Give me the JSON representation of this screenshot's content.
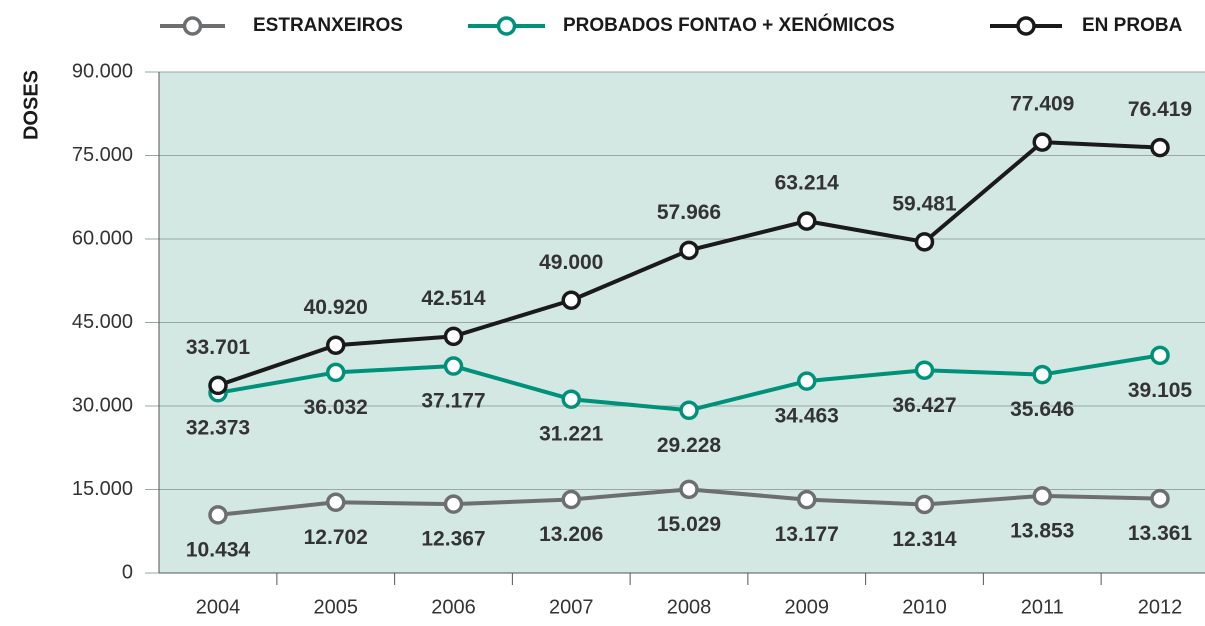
{
  "chart_data": {
    "type": "line",
    "y_label": "DOSES",
    "categories": [
      "2004",
      "2005",
      "2006",
      "2007",
      "2008",
      "2009",
      "2010",
      "2011",
      "2012"
    ],
    "series": [
      {
        "name": "ESTRANXEIROS",
        "color": "#6d6e70",
        "values": [
          10434,
          12702,
          12367,
          13206,
          15029,
          13177,
          12314,
          13853,
          13361
        ],
        "value_labels": [
          "10.434",
          "12.702",
          "12.367",
          "13.206",
          "15.029",
          "13.177",
          "12.314",
          "13.853",
          "13.361"
        ]
      },
      {
        "name": "PROBADOS FONTAO + XENÓMICOS",
        "color": "#00917a",
        "values": [
          32373,
          36032,
          37177,
          31221,
          29228,
          34463,
          36427,
          35646,
          39105
        ],
        "value_labels": [
          "32.373",
          "36.032",
          "37.177",
          "31.221",
          "29.228",
          "34.463",
          "36.427",
          "35.646",
          "39.105"
        ]
      },
      {
        "name": "EN PROBA",
        "color": "#1a1a1a",
        "values": [
          33701,
          40920,
          42514,
          49000,
          57966,
          63214,
          59481,
          77409,
          76419
        ],
        "value_labels": [
          "33.701",
          "40.920",
          "42.514",
          "49.000",
          "57.966",
          "63.214",
          "59.481",
          "77.409",
          "76.419"
        ]
      }
    ],
    "ylim": [
      0,
      90000
    ],
    "yticks": [
      0,
      {
        "value": 15000,
        "label": "15.000"
      },
      {
        "value": 30000,
        "label": "30.000"
      },
      {
        "value": 45000,
        "label": "45.000"
      },
      {
        "value": 60000,
        "label": "60.000"
      },
      {
        "value": 75000,
        "label": "75.000"
      },
      {
        "value": 90000,
        "label": "90.000"
      }
    ],
    "grid": true,
    "legend": "top",
    "background": "#d3e8e3"
  }
}
